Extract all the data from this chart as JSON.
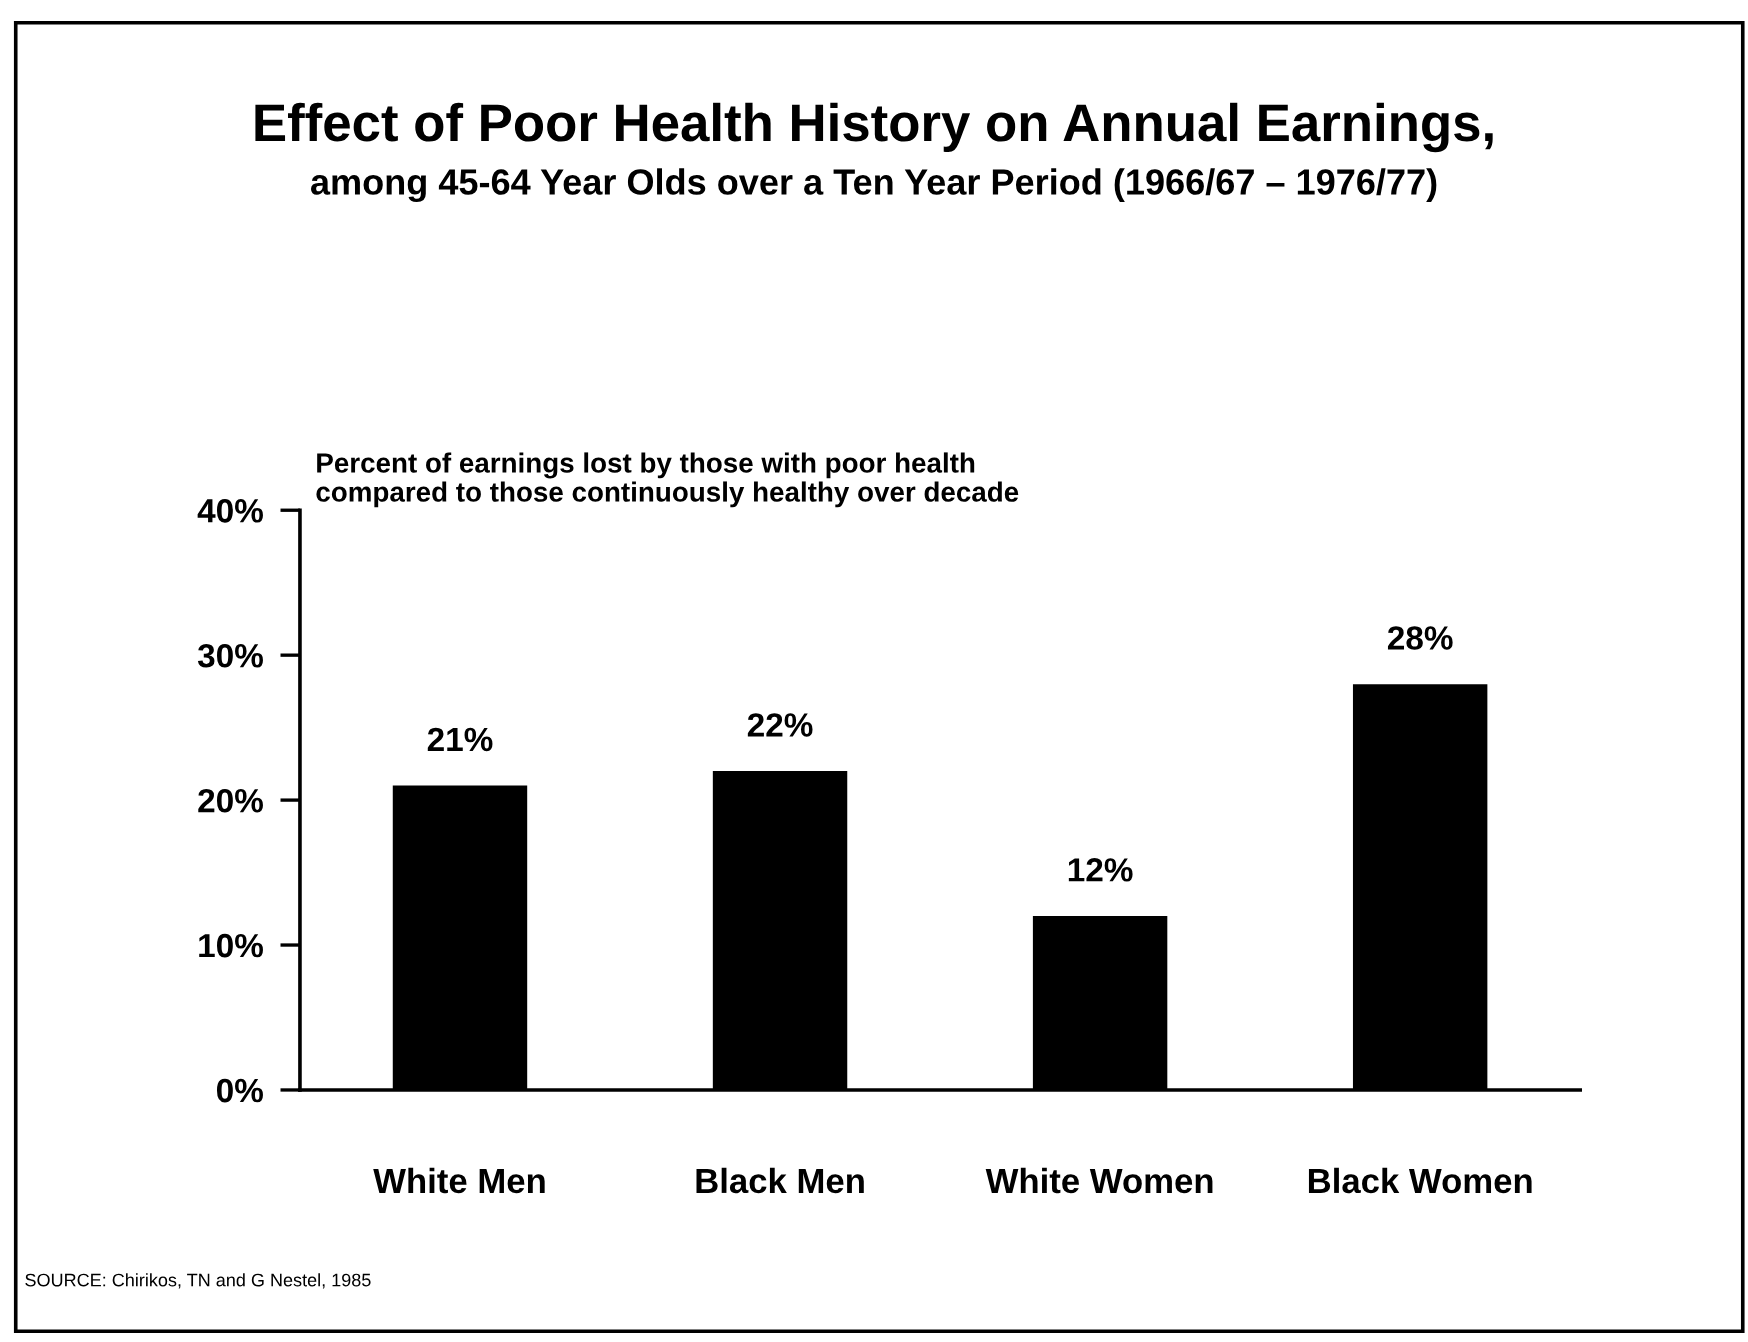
{
  "chart_data": {
    "type": "bar",
    "title": "Effect of Poor Health History on Annual Earnings,",
    "subtitle": "among 45-64 Year Olds over a Ten Year Period (1966/67 – 1976/77)",
    "categories": [
      "White Men",
      "Black Men",
      "White Women",
      "Black Women"
    ],
    "values": [
      21,
      22,
      12,
      28
    ],
    "color": "#000000",
    "value_labels": [
      "21%",
      "22%",
      "12%",
      "28%"
    ],
    "ylim": [
      0,
      40
    ],
    "yticks": [
      {
        "value": 0,
        "label": "0%"
      },
      {
        "value": 10,
        "label": "10%"
      },
      {
        "value": 20,
        "label": "20%"
      },
      {
        "value": 30,
        "label": "30%"
      },
      {
        "value": 40,
        "label": "40%"
      }
    ],
    "grid": false,
    "annotations": [
      "Percent of earnings lost by those with poor health\ncompared to those continuously healthy over decade",
      "SOURCE: Chirikos, TN and G Nestel, 1985"
    ]
  }
}
